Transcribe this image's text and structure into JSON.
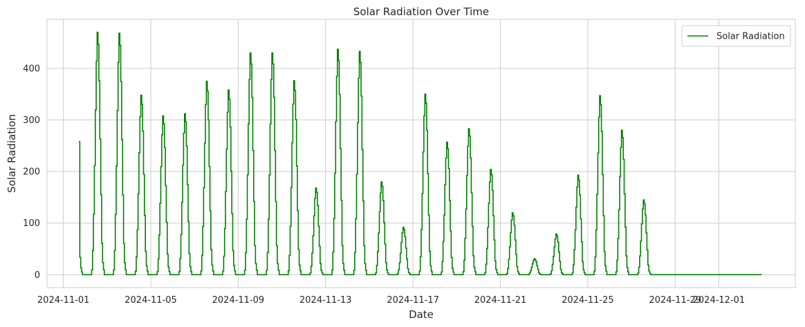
{
  "chart_data": {
    "type": "line",
    "title": "Solar Radiation Over Time",
    "xlabel": "Date",
    "ylabel": "Solar Radiation",
    "legend": {
      "placement": "top-right",
      "entries": [
        "Solar Radiation"
      ]
    },
    "grid": true,
    "x_range": [
      "2024-10-31T06:00",
      "2024-12-04T12:00"
    ],
    "ylim": [
      -25,
      495
    ],
    "x_ticks": [
      "2024-11-01",
      "2024-11-05",
      "2024-11-09",
      "2024-11-13",
      "2024-11-17",
      "2024-11-21",
      "2024-11-25",
      "2024-11-29",
      "2024-12-01"
    ],
    "y_ticks": [
      0,
      100,
      200,
      300,
      400
    ],
    "series": [
      {
        "name": "Solar Radiation",
        "color": "#008000",
        "start": "2024-11-01T17:00",
        "end": "2024-12-02T23:00",
        "daily_peaks": [
          {
            "date": "2024-11-01",
            "peak": 258
          },
          {
            "date": "2024-11-02",
            "peak": 470
          },
          {
            "date": "2024-11-03",
            "peak": 468
          },
          {
            "date": "2024-11-04",
            "peak": 348
          },
          {
            "date": "2024-11-05",
            "peak": 308
          },
          {
            "date": "2024-11-06",
            "peak": 312
          },
          {
            "date": "2024-11-07",
            "peak": 375
          },
          {
            "date": "2024-11-08",
            "peak": 358
          },
          {
            "date": "2024-11-09",
            "peak": 430
          },
          {
            "date": "2024-11-10",
            "peak": 430
          },
          {
            "date": "2024-11-11",
            "peak": 376
          },
          {
            "date": "2024-11-12",
            "peak": 168
          },
          {
            "date": "2024-11-13",
            "peak": 437
          },
          {
            "date": "2024-11-14",
            "peak": 433
          },
          {
            "date": "2024-11-15",
            "peak": 180
          },
          {
            "date": "2024-11-16",
            "peak": 92
          },
          {
            "date": "2024-11-17",
            "peak": 350
          },
          {
            "date": "2024-11-18",
            "peak": 257
          },
          {
            "date": "2024-11-19",
            "peak": 283
          },
          {
            "date": "2024-11-20",
            "peak": 204
          },
          {
            "date": "2024-11-21",
            "peak": 120
          },
          {
            "date": "2024-11-22",
            "peak": 31
          },
          {
            "date": "2024-11-23",
            "peak": 79
          },
          {
            "date": "2024-11-24",
            "peak": 193
          },
          {
            "date": "2024-11-25",
            "peak": 347
          },
          {
            "date": "2024-11-26",
            "peak": 280
          },
          {
            "date": "2024-11-27",
            "peak": 145
          },
          {
            "date": "2024-11-28",
            "peak": 0
          },
          {
            "date": "2024-11-29",
            "peak": 0
          },
          {
            "date": "2024-11-30",
            "peak": 0
          },
          {
            "date": "2024-12-01",
            "peak": 0
          },
          {
            "date": "2024-12-02",
            "peak": 0
          }
        ]
      }
    ]
  }
}
